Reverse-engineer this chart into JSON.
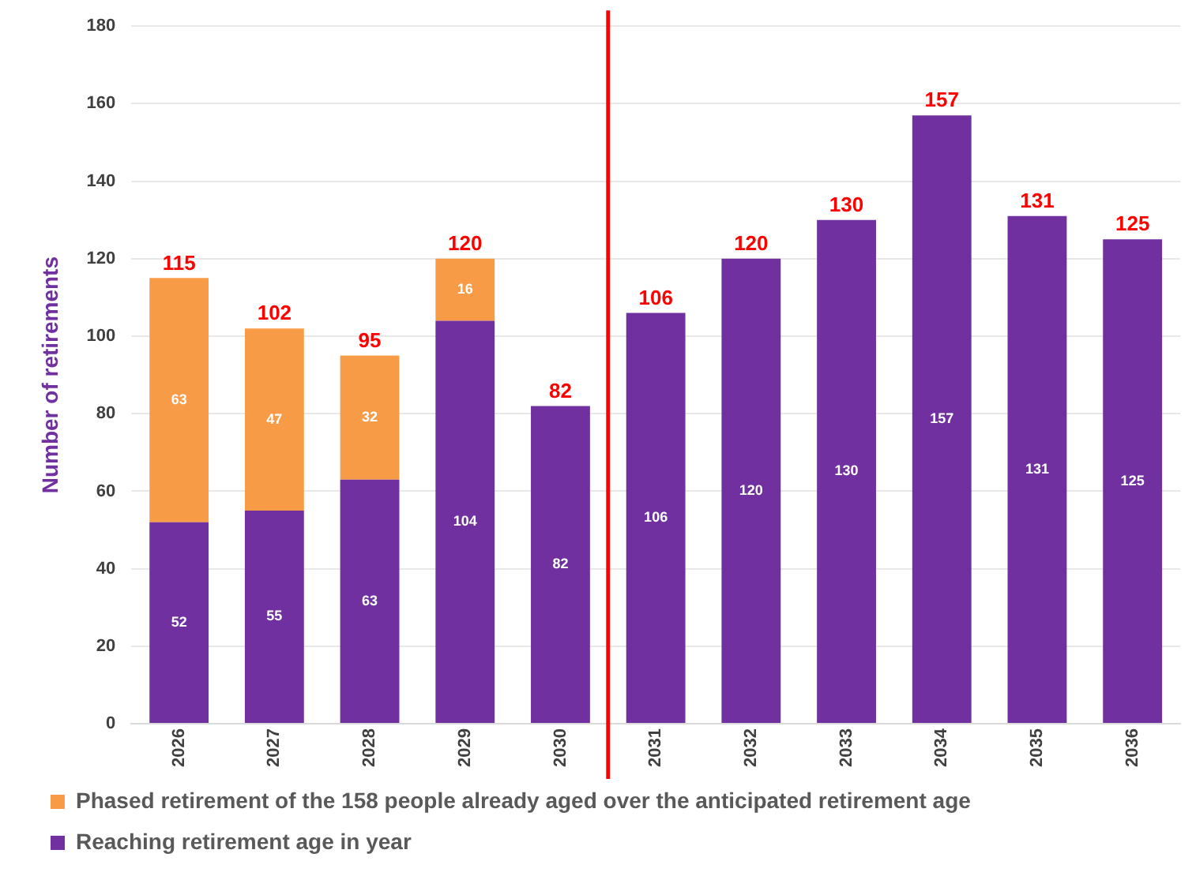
{
  "chart_data": {
    "type": "bar",
    "ylabel": "Number of retirements",
    "stacked": true,
    "x": [
      2026,
      2027,
      2028,
      2029,
      2030,
      2031,
      2032,
      2033,
      2034,
      2035,
      2036
    ],
    "xlim": [
      2025.5,
      2036.5
    ],
    "xticks": [
      2026,
      2027,
      2028,
      2029,
      2030,
      2031,
      2032,
      2033,
      2034,
      2035,
      2036
    ],
    "ylim": [
      0,
      180
    ],
    "yticks": [
      0,
      20,
      40,
      60,
      80,
      100,
      120,
      140,
      160,
      180
    ],
    "series": [
      {
        "name": "Reaching retirement age in year",
        "color": "#7030a0",
        "values": [
          52,
          55,
          63,
          104,
          82,
          106,
          120,
          130,
          157,
          131,
          125
        ]
      },
      {
        "name": "Phased retirement of the 158 people already aged over the anticipated retirement age",
        "color": "#f79b46",
        "values": [
          63,
          47,
          32,
          16,
          null,
          null,
          null,
          null,
          null,
          null,
          null
        ]
      }
    ],
    "totals": [
      "115",
      "102",
      "95",
      "120",
      "82",
      "106",
      "120",
      "130",
      "157",
      "131",
      "125"
    ],
    "data_labels": true,
    "grid": "y",
    "legend": "bottom",
    "ref_lines": [
      {
        "axis": "x",
        "value": 2030.5,
        "color": "#ff0000"
      }
    ]
  }
}
